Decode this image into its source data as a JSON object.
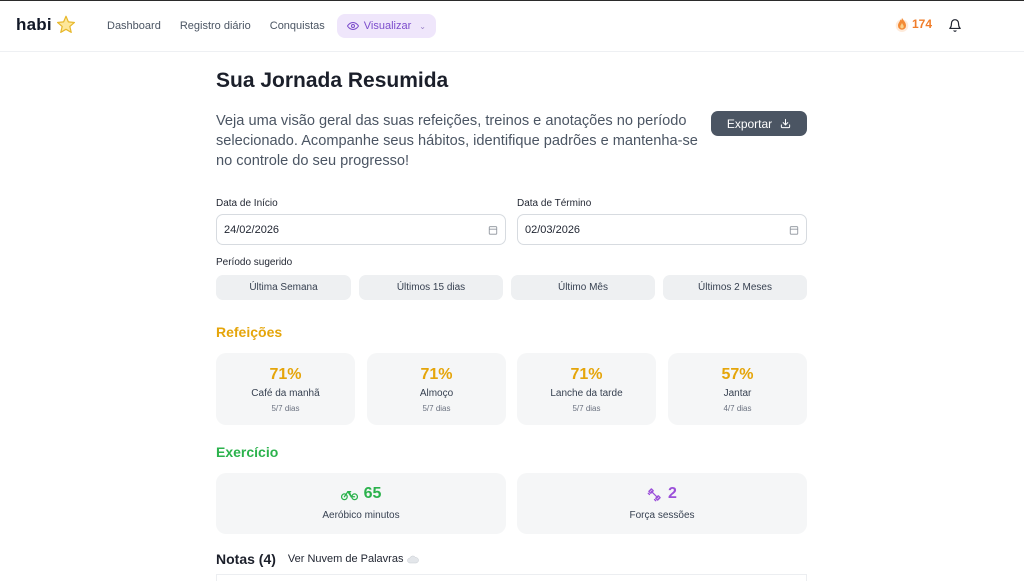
{
  "app": {
    "name": "habi"
  },
  "nav": {
    "items": [
      {
        "label": "Dashboard"
      },
      {
        "label": "Registro diário"
      },
      {
        "label": "Conquistas"
      }
    ],
    "active": {
      "label": "Visualizar",
      "icon": "eye-icon"
    },
    "streak": {
      "value": "174",
      "icon": "fire-icon"
    },
    "bell_icon": "bell-icon"
  },
  "page": {
    "title": "Sua Jornada Resumida",
    "intro": "Veja uma visão geral das suas refeições, treinos e anotações no período selecionado. Acompanhe seus hábitos, identifique padrões e mantenha-se no controle do seu progresso!",
    "export_label": "Exportar"
  },
  "filters": {
    "start": {
      "label": "Data de Início",
      "value": "24/02/2026"
    },
    "end": {
      "label": "Data de Término",
      "value": "02/03/2026"
    },
    "suggested_label": "Período sugerido",
    "chips": [
      {
        "label": "Última Semana"
      },
      {
        "label": "Últimos 15 dias"
      },
      {
        "label": "Último Mês"
      },
      {
        "label": "Últimos 2 Meses"
      }
    ]
  },
  "meals": {
    "title": "Refeições",
    "cards": [
      {
        "pct": "71%",
        "name": "Café da manhã",
        "days": "5/7 dias"
      },
      {
        "pct": "71%",
        "name": "Almoço",
        "days": "5/7 dias"
      },
      {
        "pct": "71%",
        "name": "Lanche da tarde",
        "days": "5/7 dias"
      },
      {
        "pct": "57%",
        "name": "Jantar",
        "days": "4/7 dias"
      }
    ]
  },
  "exercise": {
    "title": "Exercício",
    "cards": [
      {
        "value": "65",
        "label": "Aeróbico minutos",
        "icon": "bike-icon",
        "color": "#2bb24c"
      },
      {
        "value": "2",
        "label": "Força sessões",
        "icon": "dumbbell-icon",
        "color": "#9b4fd9"
      }
    ]
  },
  "notes": {
    "title": "Notas (4)",
    "cloud_link": "Ver Nuvem de Palavras",
    "cloud_icon": "cloud-icon"
  },
  "colors": {
    "meals": "#e5a50a",
    "exercise": "#2bb24c",
    "accent_purple": "#7c4dcc",
    "streak": "#f07d2a"
  }
}
